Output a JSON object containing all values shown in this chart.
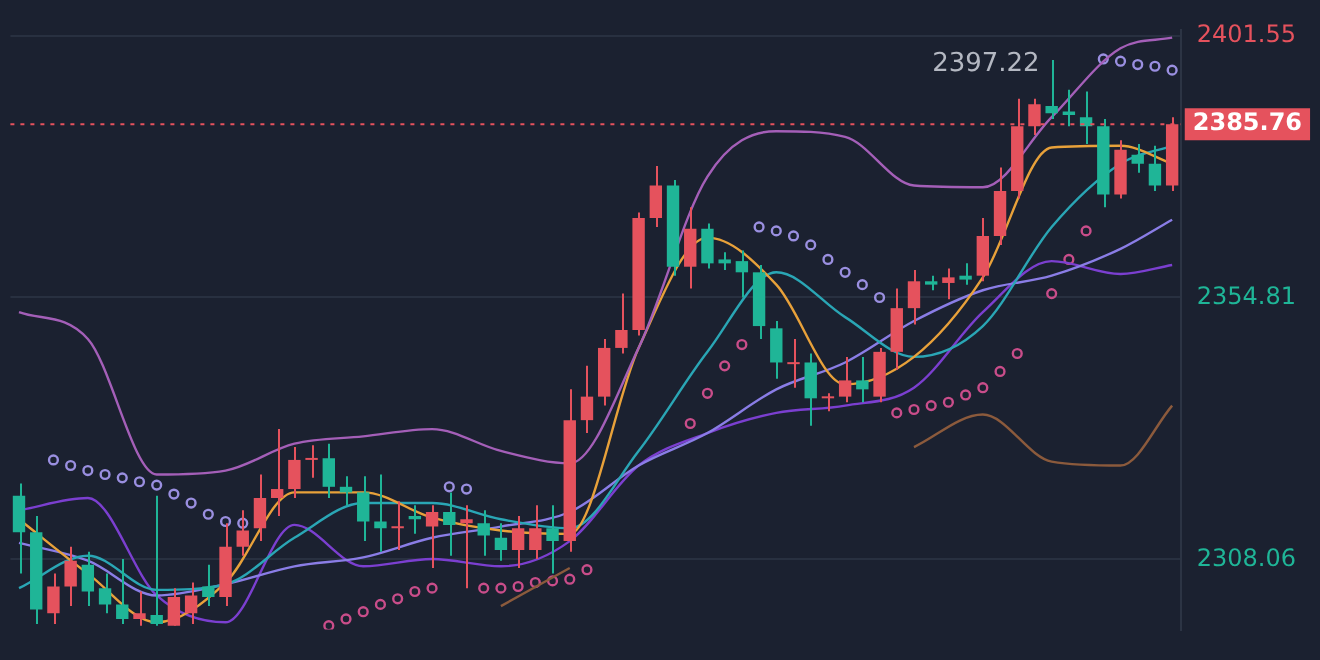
{
  "chart_data": {
    "type": "candlestick",
    "categories": [
      null,
      null,
      null,
      null,
      null,
      null,
      null,
      null,
      null,
      null,
      null,
      null,
      null,
      null,
      null,
      null,
      null,
      null,
      null,
      null,
      null,
      null,
      null,
      null,
      null,
      null,
      null,
      null,
      null,
      null,
      null,
      null,
      null,
      null,
      null,
      null,
      null,
      null,
      null,
      null,
      null,
      null,
      null,
      null,
      null,
      null,
      null,
      null,
      null,
      null,
      null,
      null,
      null,
      null,
      null,
      null,
      null,
      null,
      null,
      null,
      null,
      null,
      null,
      null,
      null,
      null,
      null,
      null
    ],
    "ohlc": [
      [
        2319.4,
        2321.6,
        2305.5,
        2312.9
      ],
      [
        2312.9,
        2315.8,
        2296.5,
        2299.1
      ],
      [
        2298.4,
        2305.5,
        2296.5,
        2303.2
      ],
      [
        2303.2,
        2310.3,
        2299.7,
        2307.8
      ],
      [
        2307.1,
        2309.4,
        2299.7,
        2302.3
      ],
      [
        2302.9,
        2305.5,
        2298.4,
        2300.0
      ],
      [
        2300.0,
        2308.1,
        2296.5,
        2297.4
      ],
      [
        2297.4,
        2302.3,
        2296.2,
        2298.4
      ],
      [
        2298.1,
        2319.4,
        2296.2,
        2296.5
      ],
      [
        2296.2,
        2302.9,
        2296.2,
        2301.3
      ],
      [
        2298.4,
        2303.9,
        2296.5,
        2301.6
      ],
      [
        2303.2,
        2307.1,
        2299.7,
        2301.3
      ],
      [
        2301.3,
        2314.5,
        2299.7,
        2310.3
      ],
      [
        2310.3,
        2316.8,
        2308.7,
        2313.2
      ],
      [
        2313.6,
        2323.2,
        2311.3,
        2319.0
      ],
      [
        2319.0,
        2331.3,
        2315.8,
        2320.6
      ],
      [
        2320.6,
        2328.1,
        2319.0,
        2325.8
      ],
      [
        2325.8,
        2328.4,
        2322.6,
        2326.1
      ],
      [
        2326.1,
        2328.7,
        2319.0,
        2321.0
      ],
      [
        2321.0,
        2322.9,
        2317.7,
        2320.0
      ],
      [
        2320.0,
        2322.9,
        2311.3,
        2314.8
      ],
      [
        2314.8,
        2323.2,
        2309.4,
        2313.6
      ],
      [
        2313.6,
        2318.4,
        2309.7,
        2313.9
      ],
      [
        2315.8,
        2317.7,
        2312.6,
        2315.2
      ],
      [
        2313.9,
        2317.7,
        2306.5,
        2316.5
      ],
      [
        2316.5,
        2320.0,
        2308.7,
        2314.2
      ],
      [
        2314.5,
        2317.7,
        2302.9,
        2315.2
      ],
      [
        2314.5,
        2316.8,
        2308.7,
        2312.3
      ],
      [
        2311.9,
        2314.5,
        2307.8,
        2309.7
      ],
      [
        2309.7,
        2315.8,
        2306.5,
        2313.6
      ],
      [
        2309.7,
        2317.7,
        2308.1,
        2313.6
      ],
      [
        2313.6,
        2317.7,
        2305.5,
        2311.3
      ],
      [
        2311.3,
        2338.4,
        2309.4,
        2332.9
      ],
      [
        2332.9,
        2342.6,
        2330.6,
        2337.1
      ],
      [
        2337.1,
        2347.4,
        2335.5,
        2345.8
      ],
      [
        2345.8,
        2355.5,
        2344.8,
        2349.0
      ],
      [
        2349.0,
        2370.0,
        2348.0,
        2369.0
      ],
      [
        2369.0,
        2378.3,
        2367.4,
        2374.8
      ],
      [
        2374.8,
        2375.8,
        2358.7,
        2360.3
      ],
      [
        2360.3,
        2370.9,
        2356.4,
        2367.1
      ],
      [
        2367.1,
        2368.0,
        2360.0,
        2360.9
      ],
      [
        2361.6,
        2362.9,
        2359.7,
        2360.9
      ],
      [
        2361.3,
        2363.2,
        2354.8,
        2359.3
      ],
      [
        2359.3,
        2360.6,
        2347.4,
        2349.7
      ],
      [
        2349.3,
        2350.6,
        2340.3,
        2343.2
      ],
      [
        2342.9,
        2347.4,
        2338.7,
        2343.2
      ],
      [
        2343.2,
        2344.8,
        2331.9,
        2336.8
      ],
      [
        2336.8,
        2337.7,
        2334.5,
        2337.1
      ],
      [
        2337.1,
        2344.2,
        2336.1,
        2340.0
      ],
      [
        2340.0,
        2344.2,
        2336.1,
        2338.4
      ],
      [
        2337.1,
        2345.8,
        2336.1,
        2345.1
      ],
      [
        2345.1,
        2356.4,
        2341.9,
        2352.9
      ],
      [
        2352.9,
        2359.7,
        2350.0,
        2357.7
      ],
      [
        2357.7,
        2358.7,
        2356.1,
        2357.1
      ],
      [
        2357.4,
        2360.0,
        2354.5,
        2358.4
      ],
      [
        2358.7,
        2360.9,
        2357.1,
        2358.0
      ],
      [
        2358.7,
        2369.0,
        2357.7,
        2365.8
      ],
      [
        2365.8,
        2378.0,
        2364.2,
        2373.8
      ],
      [
        2373.8,
        2390.3,
        2372.5,
        2385.4
      ],
      [
        2385.4,
        2390.3,
        2383.8,
        2389.3
      ],
      [
        2389.0,
        2397.22,
        2386.7,
        2387.7
      ],
      [
        2388.0,
        2391.9,
        2385.4,
        2387.4
      ],
      [
        2387.0,
        2391.6,
        2382.2,
        2385.4
      ],
      [
        2385.4,
        2386.7,
        2370.9,
        2373.2
      ],
      [
        2373.2,
        2382.9,
        2372.5,
        2381.2
      ],
      [
        2380.3,
        2382.2,
        2377.1,
        2378.7
      ],
      [
        2378.7,
        2381.9,
        2373.8,
        2374.8
      ],
      [
        2374.8,
        2387.0,
        2373.8,
        2385.76
      ]
    ],
    "series": [
      {
        "type": "line",
        "color": "#a45fb8",
        "values": [
          2352.2,
          null,
          null,
          null,
          2347.4,
          null,
          null,
          null,
          2323.2,
          null,
          null,
          null,
          2323.9,
          null,
          null,
          null,
          2328.7,
          null,
          null,
          null,
          2330.0,
          null,
          null,
          null,
          2331.3,
          null,
          null,
          null,
          2327.4,
          null,
          null,
          null,
          2325.2,
          null,
          null,
          null,
          2345.8,
          null,
          null,
          null,
          2376.4,
          null,
          null,
          null,
          2384.5,
          null,
          null,
          null,
          2383.5,
          null,
          null,
          null,
          2374.8,
          null,
          null,
          null,
          2374.5,
          null,
          null,
          null,
          2387.0,
          null,
          null,
          null,
          2399.3,
          null,
          null,
          2401.2
        ]
      },
      {
        "type": "line",
        "color": "#8b5a3c",
        "values": [
          null,
          null,
          null,
          null,
          null,
          null,
          null,
          null,
          null,
          null,
          null,
          null,
          null,
          null,
          null,
          null,
          null,
          null,
          null,
          null,
          null,
          null,
          null,
          null,
          null,
          null,
          null,
          null,
          2299.7,
          null,
          null,
          null,
          2306.5,
          null,
          null,
          null,
          null,
          null,
          null,
          null,
          null,
          null,
          null,
          null,
          null,
          null,
          null,
          null,
          null,
          null,
          null,
          null,
          null,
          null,
          null,
          null,
          null,
          null,
          null,
          null,
          null,
          null,
          null,
          null,
          null,
          null,
          null,
          null
        ]
      },
      {
        "type": "line",
        "color": "#8b5a3c",
        "values": [
          null,
          null,
          null,
          null,
          null,
          null,
          null,
          null,
          null,
          null,
          null,
          null,
          null,
          null,
          null,
          null,
          null,
          null,
          null,
          null,
          null,
          null,
          null,
          null,
          null,
          null,
          null,
          null,
          null,
          null,
          null,
          null,
          null,
          null,
          null,
          null,
          null,
          null,
          null,
          null,
          null,
          null,
          null,
          null,
          null,
          null,
          null,
          null,
          null,
          null,
          null,
          null,
          2328.1,
          null,
          null,
          null,
          2333.9,
          null,
          null,
          null,
          2325.5,
          null,
          null,
          null,
          2324.8,
          null,
          null,
          2335.5
        ]
      },
      {
        "type": "line",
        "color": "#e8a13a",
        "values": [
          2315.2,
          null,
          null,
          null,
          2305.5,
          null,
          null,
          null,
          2296.8,
          null,
          null,
          null,
          2303.9,
          null,
          null,
          null,
          2320.0,
          null,
          null,
          null,
          2320.0,
          null,
          null,
          null,
          2315.5,
          null,
          null,
          null,
          2313.2,
          null,
          null,
          null,
          2312.6,
          null,
          null,
          null,
          2345.8,
          null,
          null,
          null,
          2365.5,
          null,
          null,
          null,
          2357.1,
          null,
          null,
          null,
          2339.3,
          null,
          null,
          null,
          2344.2,
          null,
          null,
          null,
          2358.4,
          null,
          null,
          null,
          2381.6,
          null,
          null,
          null,
          2381.9,
          null,
          null,
          2378.7
        ]
      },
      {
        "type": "line",
        "color": "#2aa6b5",
        "values": [
          2302.9,
          null,
          null,
          null,
          2308.7,
          null,
          null,
          null,
          2302.6,
          null,
          null,
          null,
          2303.6,
          null,
          null,
          null,
          2311.9,
          null,
          null,
          null,
          2318.1,
          null,
          null,
          null,
          2318.1,
          null,
          null,
          null,
          2315.2,
          null,
          null,
          null,
          2313.6,
          null,
          null,
          null,
          2327.4,
          null,
          null,
          null,
          2345.1,
          null,
          null,
          null,
          2359.3,
          null,
          null,
          null,
          2351.3,
          null,
          null,
          null,
          2344.2,
          null,
          null,
          null,
          2349.7,
          null,
          null,
          null,
          2367.4,
          null,
          null,
          null,
          2378.7,
          null,
          null,
          2381.9
        ]
      },
      {
        "type": "line",
        "color": "#8a7de6",
        "values": [
          2311.0,
          null,
          null,
          null,
          2307.8,
          null,
          null,
          null,
          2301.6,
          null,
          null,
          null,
          2303.6,
          null,
          null,
          null,
          2306.8,
          null,
          null,
          null,
          2308.4,
          null,
          null,
          null,
          2311.9,
          null,
          null,
          null,
          2313.9,
          null,
          null,
          null,
          2316.5,
          null,
          null,
          null,
          2324.8,
          null,
          null,
          null,
          2330.6,
          null,
          null,
          null,
          2338.4,
          null,
          null,
          null,
          2343.2,
          null,
          null,
          null,
          2350.6,
          null,
          null,
          null,
          2356.1,
          null,
          null,
          null,
          2358.7,
          null,
          null,
          null,
          2363.5,
          null,
          null,
          2368.7
        ]
      },
      {
        "type": "line",
        "color": "#7b3fd0",
        "values": [
          2316.8,
          null,
          null,
          null,
          2319.0,
          null,
          null,
          null,
          2301.6,
          null,
          null,
          null,
          2296.8,
          null,
          null,
          null,
          2314.2,
          null,
          null,
          null,
          2306.8,
          null,
          null,
          null,
          2308.1,
          null,
          null,
          null,
          2306.8,
          null,
          null,
          null,
          2311.3,
          null,
          null,
          null,
          2324.8,
          null,
          null,
          null,
          2330.6,
          null,
          null,
          null,
          2334.2,
          null,
          null,
          null,
          2335.5,
          null,
          null,
          null,
          2338.7,
          null,
          null,
          null,
          2352.2,
          null,
          null,
          null,
          2361.3,
          null,
          null,
          null,
          2359.0,
          null,
          null,
          2360.6
        ]
      },
      {
        "type": "scatter",
        "color": "#9a8fe0",
        "values": [
          null,
          null,
          2325.8,
          2324.8,
          2323.9,
          2323.2,
          2322.6,
          2321.9,
          2321.3,
          2319.7,
          2318.1,
          2316.1,
          2314.8,
          2314.5,
          null,
          null,
          null,
          null,
          null,
          null,
          null,
          null,
          null,
          null,
          null,
          2321.0,
          2320.6,
          null,
          null,
          null,
          null,
          null,
          null,
          null,
          null,
          null,
          null,
          null,
          null,
          null,
          null,
          null,
          null,
          2367.4,
          2366.7,
          2365.8,
          2364.2,
          2361.6,
          2359.3,
          2357.1,
          2354.8,
          null,
          null,
          null,
          null,
          null,
          null,
          null,
          null,
          null,
          null,
          null,
          null,
          2397.4,
          2397.0,
          2396.4,
          2396.1,
          2395.4
        ]
      },
      {
        "type": "scatter",
        "color": "#c94d8a",
        "values": [
          null,
          null,
          null,
          null,
          null,
          null,
          null,
          null,
          null,
          null,
          null,
          null,
          null,
          null,
          null,
          null,
          null,
          null,
          2296.2,
          2297.4,
          2298.7,
          2300.0,
          2301.0,
          2302.3,
          2302.9,
          null,
          null,
          2302.9,
          2302.9,
          2303.2,
          2303.9,
          2304.2,
          2304.5,
          2306.2,
          null,
          null,
          null,
          null,
          null,
          2332.3,
          2337.7,
          2342.6,
          2346.4,
          null,
          null,
          null,
          null,
          null,
          null,
          null,
          null,
          2334.2,
          2334.8,
          2335.5,
          2336.1,
          2337.4,
          2338.7,
          2341.6,
          2344.8,
          null,
          2355.5,
          2361.6,
          2366.7,
          null,
          null,
          null,
          null,
          null
        ]
      }
    ],
    "ylim": [
      2295.5,
      2402.5
    ],
    "yticks": [
      2308.06,
      2354.81,
      2401.55
    ],
    "ref_lines": [
      {
        "axis": "y",
        "value": 2385.76,
        "label": "2385.76",
        "color": "#e5525d",
        "line_style": "dotted"
      }
    ],
    "annotations": [
      "2397.22"
    ],
    "grid": "y",
    "legend": false,
    "tick_labels": "y"
  }
}
